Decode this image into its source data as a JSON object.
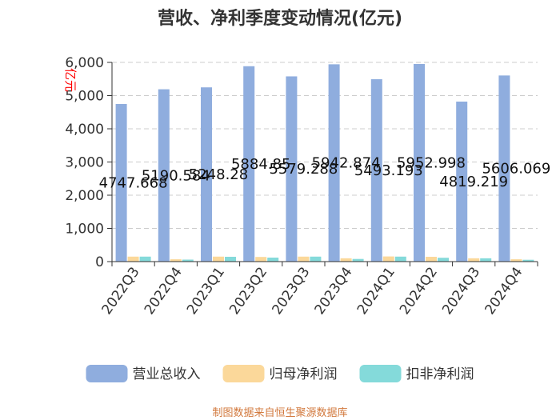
{
  "chart_data": {
    "type": "bar",
    "title": "营收、净利季度变动情况(亿元)",
    "ylabel": "亿元",
    "xlabel": "",
    "ylim": [
      0,
      6000
    ],
    "yticks": [
      0,
      1000,
      2000,
      3000,
      4000,
      5000,
      6000
    ],
    "ytick_labels": [
      "0",
      "1,000",
      "2,000",
      "3,000",
      "4,000",
      "5,000",
      "6,000"
    ],
    "grid": true,
    "legend_position": "bottom",
    "categories": [
      "2022Q3",
      "2022Q4",
      "2023Q1",
      "2023Q2",
      "2023Q3",
      "2023Q4",
      "2024Q1",
      "2024Q2",
      "2024Q3",
      "2024Q4"
    ],
    "series": [
      {
        "name": "营业总收入",
        "color": "#8fadde",
        "values": [
          4747.668,
          5190.584,
          5248.28,
          5884.85,
          5579.288,
          5942.874,
          5493.193,
          5952.998,
          4819.219,
          5606.069
        ],
        "labels": [
          "4747.668",
          "5190.584",
          "5248.28",
          "5884.85",
          "5579.288",
          "5942.874",
          "5493.193",
          "5952.998",
          "4819.219",
          "5606.069"
        ]
      },
      {
        "name": "归母净利润",
        "color": "#fbd89a",
        "values": [
          150,
          70,
          150,
          140,
          150,
          100,
          155,
          145,
          100,
          70
        ]
      },
      {
        "name": "扣非净利润",
        "color": "#84dada",
        "values": [
          150,
          60,
          145,
          120,
          150,
          80,
          150,
          115,
          100,
          55
        ]
      }
    ]
  },
  "source_text": "制图数据来自恒生聚源数据库"
}
